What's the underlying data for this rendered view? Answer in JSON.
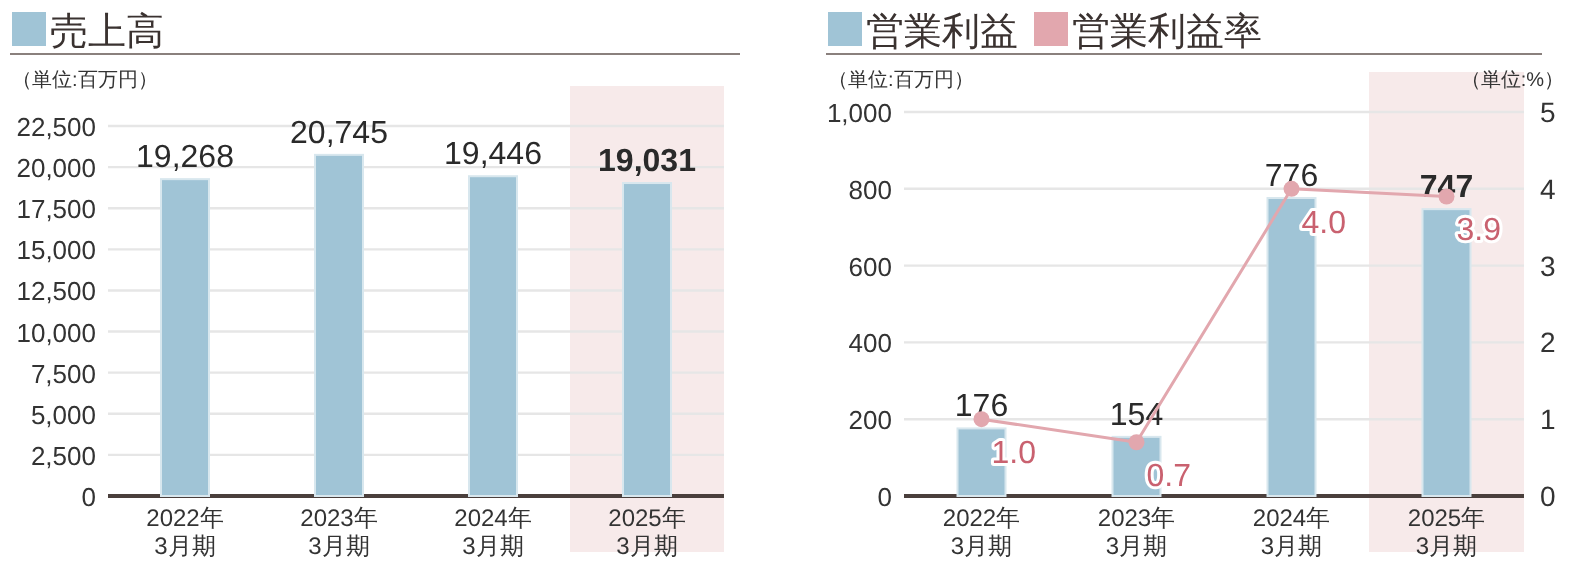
{
  "chart_data": [
    {
      "type": "bar",
      "ylabel": "（単位:百万円）",
      "legend": "top left",
      "grid": "y",
      "categories": [
        "2022年\n3月期",
        "2023年\n3月期",
        "2024年\n3月期",
        "2025年\n3月期"
      ],
      "series": [
        {
          "name": "売上高",
          "color": "#a0c4d6",
          "values": [
            19268,
            20745,
            19446,
            19031
          ],
          "value_labels": [
            "19,268",
            "20,745",
            "19,446",
            "19,031"
          ]
        }
      ],
      "ylim": [
        0,
        22500
      ],
      "yticks": [
        0,
        {
          "value": 2500,
          "label": "2,500"
        },
        {
          "value": 5000,
          "label": "5,000"
        },
        {
          "value": 7500,
          "label": "7,500"
        },
        {
          "value": 10000,
          "label": "10,000"
        },
        {
          "value": 12500,
          "label": "12,500"
        },
        {
          "value": 15000,
          "label": "15,000"
        },
        {
          "value": 17500,
          "label": "17,500"
        },
        {
          "value": 20000,
          "label": "20,000"
        },
        {
          "value": 22500,
          "label": "22,500"
        }
      ],
      "bands": [
        {
          "axis": "x",
          "from": "2025年\n3月期",
          "to": "2025年\n3月期",
          "color": "#f7eaea"
        }
      ]
    },
    {
      "type": "bar",
      "ylabel": "（単位:百万円）",
      "y2label": "（単位:%）",
      "legend": "top left",
      "grid": "y",
      "categories": [
        "2022年\n3月期",
        "2023年\n3月期",
        "2024年\n3月期",
        "2025年\n3月期"
      ],
      "series": [
        {
          "name": "営業利益",
          "color": "#a0c4d6",
          "values": [
            176,
            154,
            776,
            747
          ],
          "value_labels": [
            "176",
            "154",
            "776",
            "747"
          ]
        },
        {
          "name": "営業利益率",
          "type": "line",
          "axis": "y2",
          "marker": "circle",
          "color": "#e2a7ae",
          "values": [
            1.0,
            0.7,
            4.0,
            3.9
          ],
          "value_labels": [
            "1.0",
            "0.7",
            "4.0",
            "3.9"
          ]
        }
      ],
      "ylim": [
        0,
        1000
      ],
      "yticks": [
        0,
        200,
        400,
        600,
        800,
        {
          "value": 1000,
          "label": "1,000"
        }
      ],
      "y2lim": [
        0,
        5
      ],
      "y2ticks": [
        0,
        1,
        2,
        3,
        4,
        5
      ],
      "bands": [
        {
          "axis": "x",
          "from": "2025年\n3月期",
          "to": "2025年\n3月期",
          "color": "#f7eaea"
        }
      ]
    }
  ]
}
